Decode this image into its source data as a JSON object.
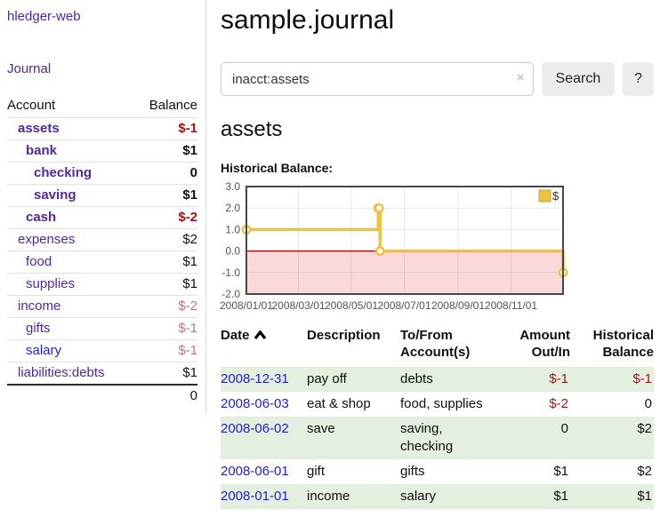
{
  "colors": {
    "link_purple": "#53279d",
    "link_blue": "#2222d2",
    "negative_strong": "#9e1616",
    "negative_muted": "#bf7878",
    "series_gold": "#edc240",
    "negative_zone_pink": "#f9d9d9",
    "zero_line_red": "#990000",
    "row_green": "#e3efdf",
    "plot_border": "#474747"
  },
  "sidebar": {
    "brand": "hledger-web",
    "nav_journal": "Journal",
    "accounts_table": {
      "headers": {
        "account": "Account",
        "balance": "Balance"
      },
      "rows": [
        {
          "account": "assets",
          "balance": "$-1",
          "depth": 1,
          "emphasis": true,
          "balance_tone": "negative-strong",
          "link_tone": "purple"
        },
        {
          "account": "bank",
          "balance": "$1",
          "depth": 2,
          "emphasis": true,
          "balance_tone": "plain",
          "link_tone": "purple"
        },
        {
          "account": "checking",
          "balance": "0",
          "depth": 3,
          "emphasis": true,
          "balance_tone": "plain",
          "link_tone": "purple"
        },
        {
          "account": "saving",
          "balance": "$1",
          "depth": 3,
          "emphasis": true,
          "balance_tone": "plain",
          "link_tone": "purple"
        },
        {
          "account": "cash",
          "balance": "$-2",
          "depth": 2,
          "emphasis": true,
          "balance_tone": "negative-strong",
          "link_tone": "purple"
        },
        {
          "account": "expenses",
          "balance": "$2",
          "depth": 1,
          "emphasis": false,
          "balance_tone": "plain",
          "link_tone": "purple"
        },
        {
          "account": "food",
          "balance": "$1",
          "depth": 2,
          "emphasis": false,
          "balance_tone": "plain",
          "link_tone": "purple"
        },
        {
          "account": "supplies",
          "balance": "$1",
          "depth": 2,
          "emphasis": false,
          "balance_tone": "plain",
          "link_tone": "purple"
        },
        {
          "account": "income",
          "balance": "$-2",
          "depth": 1,
          "emphasis": false,
          "balance_tone": "negative-muted",
          "link_tone": "purple"
        },
        {
          "account": "gifts",
          "balance": "$-1",
          "depth": 2,
          "emphasis": false,
          "balance_tone": "negative-muted",
          "link_tone": "purple"
        },
        {
          "account": "salary",
          "balance": "$-1",
          "depth": 2,
          "emphasis": false,
          "balance_tone": "negative-muted",
          "link_tone": "blue"
        },
        {
          "account": "liabilities:debts",
          "balance": "$1",
          "depth": 1,
          "emphasis": false,
          "balance_tone": "plain",
          "link_tone": "purple"
        }
      ],
      "total": "0"
    }
  },
  "main": {
    "title": "sample.journal",
    "search": {
      "query": "inacct:assets",
      "clear_icon": "×",
      "search_button": "Search",
      "help_button": "?"
    },
    "account_heading": "assets",
    "chart_title": "Historical Balance:"
  },
  "chart_data": {
    "type": "line",
    "mode": "step",
    "title": "Historical Balance:",
    "series": [
      {
        "name": "$",
        "color": "#edc240",
        "points": [
          [
            "2008-01-01",
            1
          ],
          [
            "2008-06-01",
            2
          ],
          [
            "2008-06-02",
            2
          ],
          [
            "2008-06-03",
            0
          ],
          [
            "2008-12-31",
            -1
          ]
        ]
      }
    ],
    "x_range": [
      "2008-01-01",
      "2008-12-31"
    ],
    "x_ticks": [
      "2008/01/01",
      "2008/03/01",
      "2008/05/01",
      "2008/07/01",
      "2008/09/01",
      "2008/11/01"
    ],
    "y_ticks": [
      "3.0",
      "2.0",
      "1.0",
      "0.0",
      "-1.0",
      "-2.0"
    ],
    "ylim": [
      -2,
      3
    ],
    "grid": true,
    "negative_region_shaded": true,
    "legend": {
      "label": "$",
      "position": "top-right"
    }
  },
  "register": {
    "headers": {
      "date": "Date",
      "sort_icon": "chevron-up-icon",
      "description": "Description",
      "accounts_line1": "To/From",
      "accounts_line2": "Account(s)",
      "amount_line1": "Amount",
      "amount_line2": "Out/In",
      "balance_line1": "Historical",
      "balance_line2": "Balance"
    },
    "rows": [
      {
        "date": "2008-12-31",
        "description": "pay off",
        "accounts": "debts",
        "amount": "$-1",
        "amount_tone": "negative",
        "balance": "$-1",
        "balance_tone": "negative",
        "shaded": true
      },
      {
        "date": "2008-06-03",
        "description": "eat & shop",
        "accounts": "food, supplies",
        "amount": "$-2",
        "amount_tone": "negative",
        "balance": "0",
        "balance_tone": "plain",
        "shaded": false
      },
      {
        "date": "2008-06-02",
        "description": "save",
        "accounts": "saving, checking",
        "amount": "0",
        "amount_tone": "plain",
        "balance": "$2",
        "balance_tone": "plain",
        "shaded": true
      },
      {
        "date": "2008-06-01",
        "description": "gift",
        "accounts": "gifts",
        "amount": "$1",
        "amount_tone": "plain",
        "balance": "$2",
        "balance_tone": "plain",
        "shaded": false
      },
      {
        "date": "2008-01-01",
        "description": "income",
        "accounts": "salary",
        "amount": "$1",
        "amount_tone": "plain",
        "balance": "$1",
        "balance_tone": "plain",
        "shaded": true
      }
    ]
  }
}
